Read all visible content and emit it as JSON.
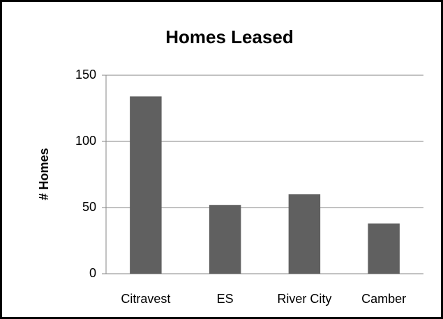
{
  "chart_data": {
    "type": "bar",
    "title": "Homes Leased",
    "y_label": "# Homes",
    "categories": [
      "Citravest",
      "ES",
      "River City",
      "Camber"
    ],
    "values": [
      134,
      52,
      60,
      38
    ],
    "color": "#606060",
    "ylim": [
      0,
      150
    ],
    "yticks": [
      0,
      50,
      100,
      150
    ],
    "grid": true
  }
}
